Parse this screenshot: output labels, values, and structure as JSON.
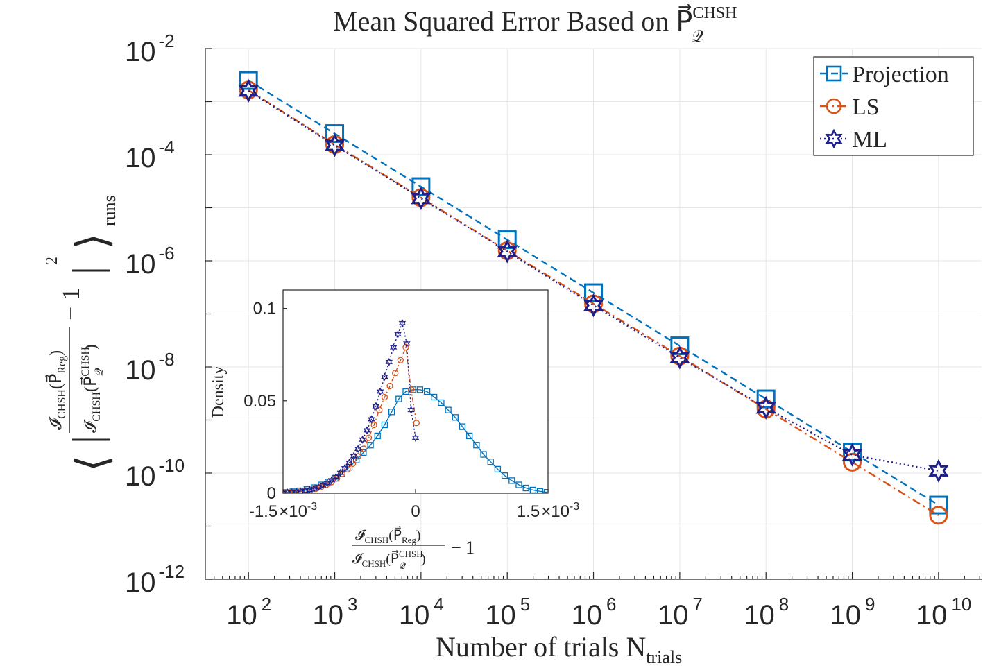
{
  "chart_data": [
    {
      "type": "line",
      "title": "Mean Squared Error Based on P⃗",
      "title_vector_sub": "𝒬",
      "title_vector_sup": "CHSH",
      "xlabel_main": "Number of trials N",
      "xlabel_sub": "trials",
      "ylabel": {
        "num_main": "𝓘",
        "num_sub": "CHSH",
        "num_arg": "(P⃗",
        "num_arg_sub": "Reg",
        "num_close": ")",
        "den_main": "𝓘",
        "den_sub": "CHSH",
        "den_arg": "(P⃗",
        "den_arg_sub": "𝒬",
        "den_arg_sup": "CHSH",
        "den_close": ")",
        "minus_one": "− 1",
        "power": "2",
        "runs": "runs"
      },
      "x_scale": "log",
      "y_scale": "log",
      "xlim": [
        31.6,
        31600000000
      ],
      "ylim": [
        1e-12,
        0.01
      ],
      "x_ticks": [
        {
          "base": "10",
          "exp": "2"
        },
        {
          "base": "10",
          "exp": "3"
        },
        {
          "base": "10",
          "exp": "4"
        },
        {
          "base": "10",
          "exp": "5"
        },
        {
          "base": "10",
          "exp": "6"
        },
        {
          "base": "10",
          "exp": "7"
        },
        {
          "base": "10",
          "exp": "8"
        },
        {
          "base": "10",
          "exp": "9"
        },
        {
          "base": "10",
          "exp": "10"
        }
      ],
      "y_ticks": [
        {
          "base": "10",
          "exp": "-2"
        },
        {
          "base": "10",
          "exp": "-4"
        },
        {
          "base": "10",
          "exp": "-6"
        },
        {
          "base": "10",
          "exp": "-8"
        },
        {
          "base": "10",
          "exp": "-10"
        },
        {
          "base": "10",
          "exp": "-12"
        }
      ],
      "grid": true,
      "legend_position": "top-right",
      "x": [
        100,
        1000,
        10000,
        100000,
        1000000,
        10000000,
        100000000,
        1000000000,
        10000000000
      ],
      "series": [
        {
          "name": "Projection",
          "color": "#0072bd",
          "marker": "square",
          "line": "dashed",
          "values": [
            0.0025,
            0.00025,
            2.5e-05,
            2.5e-06,
            2.5e-07,
            2.5e-08,
            2.5e-09,
            2.5e-10,
            2.5e-11
          ]
        },
        {
          "name": "LS",
          "color": "#d95319",
          "marker": "circle",
          "line": "dashdot",
          "values": [
            0.00165,
            0.000155,
            1.55e-05,
            1.55e-06,
            1.55e-07,
            1.6e-08,
            1.6e-09,
            1.6e-10,
            1.6e-11
          ]
        },
        {
          "name": "ML",
          "color": "#1f1f8a",
          "marker": "hexagram",
          "line": "dotted",
          "values": [
            0.0016,
            0.00015,
            1.5e-05,
            1.5e-06,
            1.45e-07,
            1.5e-08,
            1.7e-09,
            2.2e-10,
            1.1e-10
          ]
        }
      ]
    },
    {
      "type": "line",
      "title": "",
      "ylabel": "Density",
      "xlabel": {
        "num_main": "𝓘",
        "num_sub": "CHSH",
        "num_arg": "(P⃗",
        "num_arg_sub": "Reg",
        "num_close": ")",
        "den_main": "𝓘",
        "den_sub": "CHSH",
        "den_arg": "(P⃗",
        "den_arg_sub": "𝒬",
        "den_arg_sup": "CHSH",
        "den_close": ")",
        "minus_one": "− 1"
      },
      "xlim": [
        -0.0015,
        0.0015
      ],
      "ylim": [
        0,
        0.11
      ],
      "x_ticks": [
        {
          "value": -0.0015,
          "label": "-1.5",
          "times": "×",
          "base": "10",
          "exp": "-3"
        },
        {
          "value": 0,
          "label": "0"
        },
        {
          "value": 0.0015,
          "label": "1.5",
          "times": "×",
          "base": "10",
          "exp": "-3"
        }
      ],
      "y_ticks": [
        {
          "value": 0,
          "label": "0"
        },
        {
          "value": 0.05,
          "label": "0.05"
        },
        {
          "value": 0.1,
          "label": "0.1"
        }
      ],
      "series": [
        {
          "name": "Projection",
          "color": "#0072bd",
          "marker": "square",
          "line": "solid",
          "x": [
            -0.00155,
            -0.00147,
            -0.00139,
            -0.00131,
            -0.00123,
            -0.00115,
            -0.00107,
            -0.00099,
            -0.00091,
            -0.00083,
            -0.00075,
            -0.00067,
            -0.00059,
            -0.00051,
            -0.00043,
            -0.00035,
            -0.00027,
            -0.00019,
            -0.00011,
            -3e-05,
            5e-05,
            0.00013,
            0.00021,
            0.00029,
            0.00037,
            0.00045,
            0.00053,
            0.00061,
            0.00069,
            0.00077,
            0.00085,
            0.00093,
            0.00101,
            0.00109,
            0.00117,
            0.00125,
            0.00133,
            0.00141,
            0.00149
          ],
          "y": [
            0.0002,
            0.0004,
            0.0008,
            0.0013,
            0.002,
            0.003,
            0.0045,
            0.006,
            0.008,
            0.0105,
            0.014,
            0.018,
            0.022,
            0.026,
            0.031,
            0.037,
            0.044,
            0.051,
            0.055,
            0.056,
            0.056,
            0.055,
            0.052,
            0.049,
            0.045,
            0.041,
            0.036,
            0.031,
            0.026,
            0.021,
            0.017,
            0.013,
            0.0095,
            0.0068,
            0.0045,
            0.0028,
            0.0017,
            0.001,
            0.0005
          ]
        },
        {
          "name": "LS",
          "color": "#d95319",
          "marker": "circle",
          "line": "dashdot",
          "x": [
            -0.00155,
            -0.00149,
            -0.00143,
            -0.00137,
            -0.00131,
            -0.00125,
            -0.00119,
            -0.00113,
            -0.00107,
            -0.00101,
            -0.00095,
            -0.00089,
            -0.00083,
            -0.00077,
            -0.00071,
            -0.00065,
            -0.00059,
            -0.00053,
            -0.00047,
            -0.00041,
            -0.00035,
            -0.00029,
            -0.00023,
            -0.00017,
            -0.00011,
            -5e-05,
            1e-05
          ],
          "y": [
            0.0001,
            0.0002,
            0.0003,
            0.0005,
            0.0008,
            0.0012,
            0.0017,
            0.0024,
            0.0033,
            0.0045,
            0.006,
            0.008,
            0.0105,
            0.013,
            0.016,
            0.02,
            0.024,
            0.03,
            0.037,
            0.045,
            0.052,
            0.058,
            0.065,
            0.072,
            0.079,
            0.056,
            0.038
          ]
        },
        {
          "name": "ML",
          "color": "#1f1f8a",
          "marker": "hexagram",
          "line": "dotted",
          "x": [
            -0.00155,
            -0.0015,
            -0.00145,
            -0.0014,
            -0.00135,
            -0.0013,
            -0.00125,
            -0.0012,
            -0.00115,
            -0.0011,
            -0.00105,
            -0.001,
            -0.00095,
            -0.0009,
            -0.00085,
            -0.0008,
            -0.00075,
            -0.0007,
            -0.00065,
            -0.0006,
            -0.00055,
            -0.0005,
            -0.00045,
            -0.0004,
            -0.00035,
            -0.0003,
            -0.00025,
            -0.0002,
            -0.00015,
            -0.0001,
            -5e-05,
            0.0
          ],
          "y": [
            0.0001,
            0.0002,
            0.0003,
            0.0004,
            0.0006,
            0.0009,
            0.0013,
            0.0018,
            0.0025,
            0.0033,
            0.0043,
            0.0055,
            0.007,
            0.0088,
            0.011,
            0.0135,
            0.0165,
            0.02,
            0.024,
            0.029,
            0.034,
            0.04,
            0.047,
            0.055,
            0.063,
            0.071,
            0.079,
            0.086,
            0.092,
            0.081,
            0.045,
            0.03
          ]
        }
      ]
    }
  ]
}
